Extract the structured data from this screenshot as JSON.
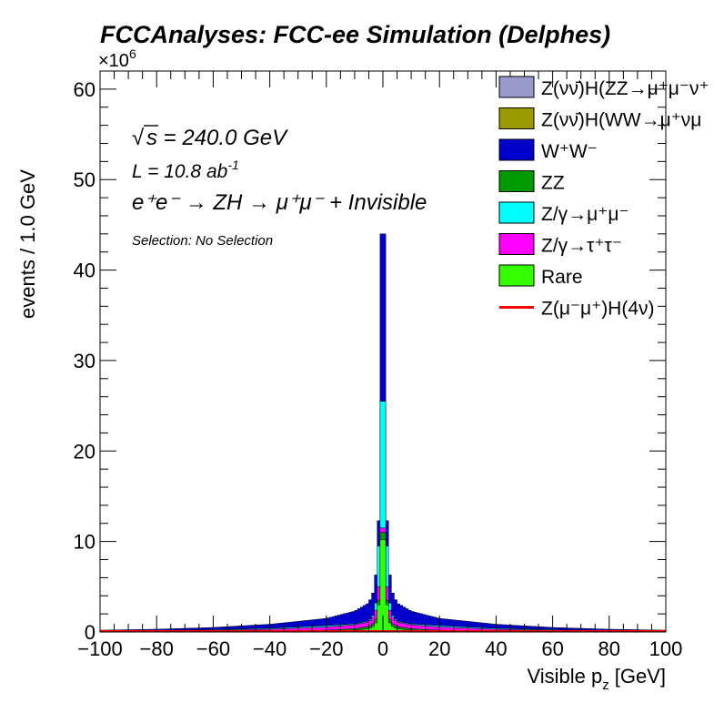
{
  "chart_data": {
    "type": "bar",
    "title": "FCCAnalyses: FCC-ee Simulation (Delphes)",
    "xlabel": "Visible p",
    "xlabel_sub": "z",
    "xlabel_unit": "[GeV]",
    "ylabel": "events / 1.0 GeV",
    "y_multiplier": "×10",
    "y_multiplier_exp": "6",
    "xlim": [
      -100,
      100
    ],
    "ylim": [
      0,
      62
    ],
    "x_ticks": [
      -100,
      -80,
      -60,
      -40,
      -20,
      0,
      20,
      40,
      60,
      80,
      100
    ],
    "y_ticks": [
      0,
      10,
      20,
      30,
      40,
      50,
      60
    ],
    "grid": false,
    "legend_position": "top-right",
    "annotations": {
      "sqrt_s": "s = 240.0 GeV",
      "lumi": "L = 10.8 ab",
      "lumi_exp": "-1",
      "process": "e⁺e⁻ → ZH → μ⁺μ⁻ + Invisible",
      "selection": "Selection: No Selection"
    },
    "legend": [
      {
        "label": "Z(νν̄)H(ZZ→μ⁺μ⁻ν⁺",
        "color": "#9999cc",
        "kind": "box"
      },
      {
        "label": "Z(νν̄)H(WW→μ⁺νμ",
        "color": "#999900",
        "kind": "box"
      },
      {
        "label": "W⁺W⁻",
        "color": "#0000cc",
        "kind": "box"
      },
      {
        "label": "ZZ",
        "color": "#009900",
        "kind": "box"
      },
      {
        "label": "Z/γ→μ⁺μ⁻",
        "color": "#00ffff",
        "kind": "box"
      },
      {
        "label": "Z/γ→τ⁺τ⁻",
        "color": "#ff00ff",
        "kind": "box"
      },
      {
        "label": "Rare",
        "color": "#33ff00",
        "kind": "box"
      },
      {
        "label": "Z(μ⁻μ⁺)H(4ν)",
        "color": "#ff0000",
        "kind": "line"
      }
    ],
    "series_stack_order": [
      "Rare",
      "ZZ",
      "Z/γ→τ⁺τ⁻",
      "Z/γ→μ⁺μ⁻",
      "W⁺W⁻"
    ],
    "series": [
      {
        "name": "W⁺W⁻",
        "color": "#0000cc",
        "shape": "cusp",
        "points": [
          [
            0.5,
            44
          ],
          [
            1.5,
            12.3
          ],
          [
            2.5,
            6.3
          ],
          [
            3.5,
            4.3
          ],
          [
            5,
            3.2
          ],
          [
            10,
            2.3
          ],
          [
            20,
            1.5
          ],
          [
            40,
            0.85
          ],
          [
            60,
            0.5
          ],
          [
            80,
            0.3
          ],
          [
            100,
            0.2
          ]
        ]
      },
      {
        "name": "Z/γ→μ⁺μ⁻",
        "color": "#00ffff",
        "shape": "cusp",
        "points": [
          [
            0.5,
            25.5
          ],
          [
            1.5,
            9.5
          ],
          [
            2.5,
            3.2
          ],
          [
            3.5,
            1.8
          ],
          [
            5,
            1.2
          ],
          [
            10,
            0.9
          ],
          [
            20,
            0.7
          ],
          [
            40,
            0.4
          ],
          [
            60,
            0.25
          ],
          [
            80,
            0.15
          ],
          [
            100,
            0.1
          ]
        ]
      },
      {
        "name": "Z/γ→τ⁺τ⁻",
        "color": "#ff00ff",
        "shape": "cusp",
        "points": [
          [
            0.5,
            11.5
          ],
          [
            1.5,
            5.0
          ],
          [
            2.5,
            2.4
          ],
          [
            3.5,
            1.6
          ],
          [
            5,
            1.1
          ],
          [
            10,
            0.8
          ],
          [
            20,
            0.55
          ],
          [
            40,
            0.3
          ],
          [
            60,
            0.18
          ],
          [
            80,
            0.1
          ],
          [
            100,
            0.07
          ]
        ]
      },
      {
        "name": "ZZ",
        "color": "#009900",
        "shape": "cusp",
        "points": [
          [
            0.5,
            11.0
          ],
          [
            1.5,
            3.5
          ],
          [
            2.5,
            1.4
          ],
          [
            3.5,
            0.9
          ],
          [
            5,
            0.6
          ],
          [
            10,
            0.35
          ],
          [
            20,
            0.2
          ],
          [
            40,
            0.12
          ],
          [
            60,
            0.08
          ],
          [
            80,
            0.05
          ],
          [
            100,
            0.04
          ]
        ]
      },
      {
        "name": "Rare",
        "color": "#33ff00",
        "shape": "cusp",
        "points": [
          [
            0.5,
            10.2
          ],
          [
            1.5,
            3.0
          ],
          [
            2.5,
            1.0
          ],
          [
            3.5,
            0.6
          ],
          [
            5,
            0.35
          ],
          [
            10,
            0.2
          ],
          [
            20,
            0.1
          ],
          [
            40,
            0.06
          ],
          [
            60,
            0.04
          ],
          [
            80,
            0.03
          ],
          [
            100,
            0.02
          ]
        ]
      }
    ],
    "signal_line": {
      "name": "Z(μ⁻μ⁺)H(4ν)",
      "color": "#ff0000",
      "value": 0.1
    }
  }
}
